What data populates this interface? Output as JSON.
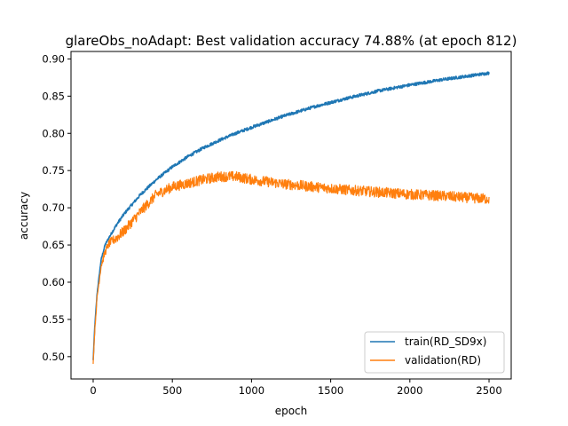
{
  "chart_data": {
    "type": "line",
    "title": "glareObs_noAdapt: Best validation accuracy 74.88% (at epoch 812)",
    "xlabel": "epoch",
    "ylabel": "accuracy",
    "xlim": [
      -140,
      2640
    ],
    "ylim": [
      0.47,
      0.91
    ],
    "xticks": [
      0,
      500,
      1000,
      1500,
      2000,
      2500
    ],
    "xtick_labels": [
      "0",
      "500",
      "1000",
      "1500",
      "2000",
      "2500"
    ],
    "yticks": [
      0.5,
      0.55,
      0.6,
      0.65,
      0.7,
      0.75,
      0.8,
      0.85,
      0.9
    ],
    "ytick_labels": [
      "0.50",
      "0.55",
      "0.60",
      "0.65",
      "0.70",
      "0.75",
      "0.80",
      "0.85",
      "0.90"
    ],
    "grid": false,
    "legend_position": "lower-right",
    "series": [
      {
        "name": "train(RD_SD9x)",
        "color": "#1f77b4",
        "noise": 0.002,
        "x": [
          0,
          10,
          25,
          50,
          75,
          100,
          150,
          200,
          300,
          400,
          500,
          600,
          700,
          800,
          900,
          1000,
          1200,
          1400,
          1600,
          1800,
          2000,
          2200,
          2400,
          2500
        ],
        "y": [
          0.495,
          0.54,
          0.585,
          0.63,
          0.65,
          0.66,
          0.678,
          0.693,
          0.718,
          0.738,
          0.755,
          0.769,
          0.781,
          0.791,
          0.8,
          0.808,
          0.823,
          0.836,
          0.847,
          0.857,
          0.865,
          0.872,
          0.878,
          0.881
        ]
      },
      {
        "name": "validation(RD)",
        "color": "#ff7f0e",
        "noise": 0.007,
        "x": [
          0,
          10,
          25,
          50,
          75,
          100,
          150,
          200,
          300,
          400,
          500,
          600,
          700,
          800,
          900,
          1000,
          1200,
          1400,
          1600,
          1800,
          2000,
          2200,
          2400,
          2500
        ],
        "y": [
          0.493,
          0.535,
          0.58,
          0.622,
          0.64,
          0.652,
          0.66,
          0.67,
          0.695,
          0.718,
          0.728,
          0.733,
          0.738,
          0.742,
          0.742,
          0.738,
          0.732,
          0.728,
          0.724,
          0.721,
          0.718,
          0.716,
          0.713,
          0.712
        ]
      }
    ]
  }
}
